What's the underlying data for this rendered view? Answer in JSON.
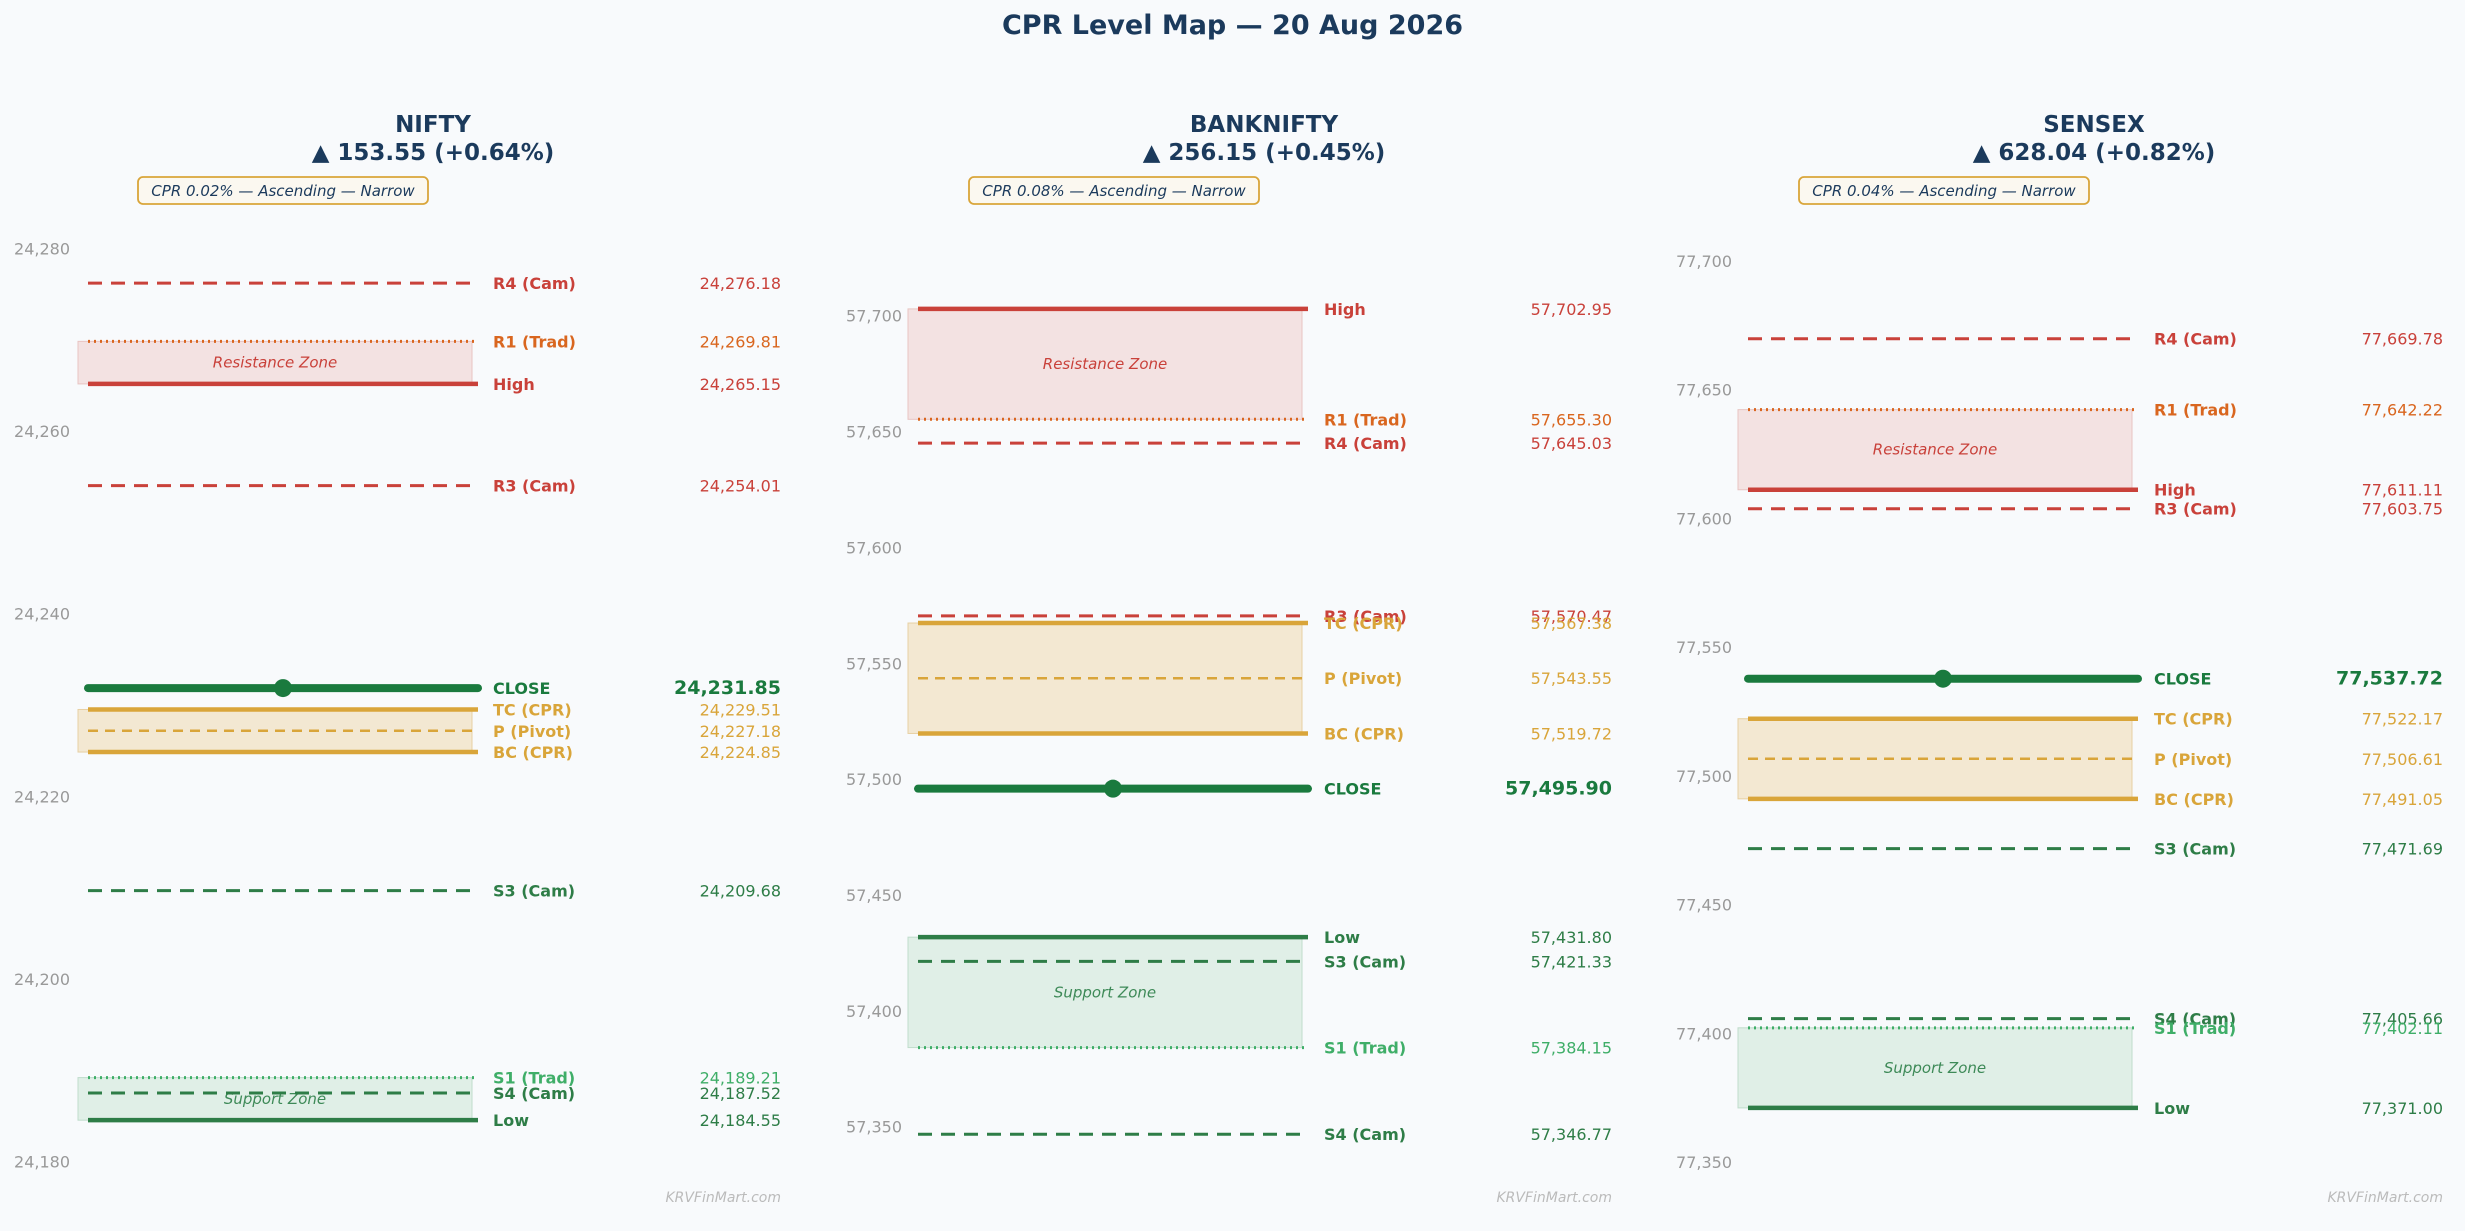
{
  "title": "CPR Level Map — 20 Aug 2026",
  "watermark": "KRVFinMart.com",
  "colors": {
    "title": "#1b3a5c",
    "resistance": "#c9413a",
    "trad_resistance": "#d9661f",
    "cpr": "#d9a53a",
    "support": "#2e7d47",
    "trad_support": "#3fae68",
    "close": "#1a7a3e",
    "tick": "#999999",
    "resistance_zone_fill": "#f3e2e2",
    "support_zone_fill": "#e0efe7",
    "cpr_zone_fill": "#f3e8d2"
  },
  "chart_data": [
    {
      "type": "line",
      "name": "NIFTY",
      "change": "▲ 153.55 (+0.64%)",
      "badge": "CPR 0.02% — Ascending — Narrow",
      "ylim": [
        24178,
        24282
      ],
      "yticks": [
        24180,
        24200,
        24220,
        24240,
        24260,
        24280
      ],
      "ytick_labels": [
        "24,180",
        "24,200",
        "24,220",
        "24,240",
        "24,260",
        "24,280"
      ],
      "zones": [
        {
          "label": "Resistance Zone",
          "kind": "resistance",
          "from": 24265.15,
          "to": 24269.81
        },
        {
          "label": "",
          "kind": "cpr",
          "from": 24224.85,
          "to": 24229.51
        },
        {
          "label": "Support Zone",
          "kind": "support",
          "from": 24184.55,
          "to": 24189.21
        }
      ],
      "levels": [
        {
          "label": "R4 (Cam)",
          "value": 24276.18,
          "value_text": "24,276.18",
          "style": "cam-res"
        },
        {
          "label": "R1 (Trad)",
          "value": 24269.81,
          "value_text": "24,269.81",
          "style": "trad-res"
        },
        {
          "label": "High",
          "value": 24265.15,
          "value_text": "24,265.15",
          "style": "high"
        },
        {
          "label": "R3 (Cam)",
          "value": 24254.01,
          "value_text": "24,254.01",
          "style": "cam-res"
        },
        {
          "label": "CLOSE",
          "value": 24231.85,
          "value_text": "24,231.85",
          "style": "close"
        },
        {
          "label": "TC (CPR)",
          "value": 24229.51,
          "value_text": "24,229.51",
          "style": "cpr-edge"
        },
        {
          "label": "P (Pivot)",
          "value": 24227.18,
          "value_text": "24,227.18",
          "style": "pivot"
        },
        {
          "label": "BC (CPR)",
          "value": 24224.85,
          "value_text": "24,224.85",
          "style": "cpr-edge"
        },
        {
          "label": "S3 (Cam)",
          "value": 24209.68,
          "value_text": "24,209.68",
          "style": "cam-sup"
        },
        {
          "label": "S1 (Trad)",
          "value": 24189.21,
          "value_text": "24,189.21",
          "style": "trad-sup"
        },
        {
          "label": "S4 (Cam)",
          "value": 24187.52,
          "value_text": "24,187.52",
          "style": "cam-sup"
        },
        {
          "label": "Low",
          "value": 24184.55,
          "value_text": "24,184.55",
          "style": "low"
        }
      ]
    },
    {
      "type": "line",
      "name": "BANKNIFTY",
      "change": "▲ 256.15 (+0.45%)",
      "badge": "CPR 0.08% — Ascending — Narrow",
      "ylim": [
        57327,
        57737
      ],
      "yticks": [
        57350,
        57400,
        57450,
        57500,
        57550,
        57600,
        57650,
        57700
      ],
      "ytick_labels": [
        "57,350",
        "57,400",
        "57,450",
        "57,500",
        "57,550",
        "57,600",
        "57,650",
        "57,700"
      ],
      "zones": [
        {
          "label": "Resistance Zone",
          "kind": "resistance",
          "from": 57655.3,
          "to": 57702.95
        },
        {
          "label": "",
          "kind": "cpr",
          "from": 57519.72,
          "to": 57567.38
        },
        {
          "label": "Support Zone",
          "kind": "support",
          "from": 57384.15,
          "to": 57431.8
        }
      ],
      "levels": [
        {
          "label": "High",
          "value": 57702.95,
          "value_text": "57,702.95",
          "style": "high"
        },
        {
          "label": "R1 (Trad)",
          "value": 57655.3,
          "value_text": "57,655.30",
          "style": "trad-res"
        },
        {
          "label": "R4 (Cam)",
          "value": 57645.03,
          "value_text": "57,645.03",
          "style": "cam-res"
        },
        {
          "label": "R3 (Cam)",
          "value": 57570.47,
          "value_text": "57,570.47",
          "style": "cam-res"
        },
        {
          "label": "TC (CPR)",
          "value": 57567.38,
          "value_text": "57,567.38",
          "style": "cpr-edge"
        },
        {
          "label": "P (Pivot)",
          "value": 57543.55,
          "value_text": "57,543.55",
          "style": "pivot"
        },
        {
          "label": "BC (CPR)",
          "value": 57519.72,
          "value_text": "57,519.72",
          "style": "cpr-edge"
        },
        {
          "label": "CLOSE",
          "value": 57495.9,
          "value_text": "57,495.90",
          "style": "close"
        },
        {
          "label": "Low",
          "value": 57431.8,
          "value_text": "57,431.80",
          "style": "low"
        },
        {
          "label": "S3 (Cam)",
          "value": 57421.33,
          "value_text": "57,421.33",
          "style": "cam-sup"
        },
        {
          "label": "S1 (Trad)",
          "value": 57384.15,
          "value_text": "57,384.15",
          "style": "trad-sup"
        },
        {
          "label": "S4 (Cam)",
          "value": 57346.77,
          "value_text": "57,346.77",
          "style": "cam-sup"
        }
      ]
    },
    {
      "type": "line",
      "name": "SENSEX",
      "change": "▲ 628.04 (+0.82%)",
      "badge": "CPR 0.04% — Ascending — Narrow",
      "ylim": [
        77343,
        77712
      ],
      "yticks": [
        77350,
        77400,
        77450,
        77500,
        77550,
        77600,
        77650,
        77700
      ],
      "ytick_labels": [
        "77,350",
        "77,400",
        "77,450",
        "77,500",
        "77,550",
        "77,600",
        "77,650",
        "77,700"
      ],
      "zones": [
        {
          "label": "Resistance Zone",
          "kind": "resistance",
          "from": 77611.11,
          "to": 77642.22
        },
        {
          "label": "",
          "kind": "cpr",
          "from": 77491.05,
          "to": 77522.17
        },
        {
          "label": "Support Zone",
          "kind": "support",
          "from": 77371.0,
          "to": 77402.11
        }
      ],
      "levels": [
        {
          "label": "R4 (Cam)",
          "value": 77669.78,
          "value_text": "77,669.78",
          "style": "cam-res"
        },
        {
          "label": "R1 (Trad)",
          "value": 77642.22,
          "value_text": "77,642.22",
          "style": "trad-res"
        },
        {
          "label": "High",
          "value": 77611.11,
          "value_text": "77,611.11",
          "style": "high"
        },
        {
          "label": "R3 (Cam)",
          "value": 77603.75,
          "value_text": "77,603.75",
          "style": "cam-res"
        },
        {
          "label": "CLOSE",
          "value": 77537.72,
          "value_text": "77,537.72",
          "style": "close"
        },
        {
          "label": "TC (CPR)",
          "value": 77522.17,
          "value_text": "77,522.17",
          "style": "cpr-edge"
        },
        {
          "label": "P (Pivot)",
          "value": 77506.61,
          "value_text": "77,506.61",
          "style": "pivot"
        },
        {
          "label": "BC (CPR)",
          "value": 77491.05,
          "value_text": "77,491.05",
          "style": "cpr-edge"
        },
        {
          "label": "S3 (Cam)",
          "value": 77471.69,
          "value_text": "77,471.69",
          "style": "cam-sup"
        },
        {
          "label": "S4 (Cam)",
          "value": 77405.66,
          "value_text": "77,405.66",
          "style": "cam-sup"
        },
        {
          "label": "S1 (Trad)",
          "value": 77402.11,
          "value_text": "77,402.11",
          "style": "trad-sup"
        },
        {
          "label": "Low",
          "value": 77371.0,
          "value_text": "77,371.00",
          "style": "low"
        }
      ]
    }
  ]
}
